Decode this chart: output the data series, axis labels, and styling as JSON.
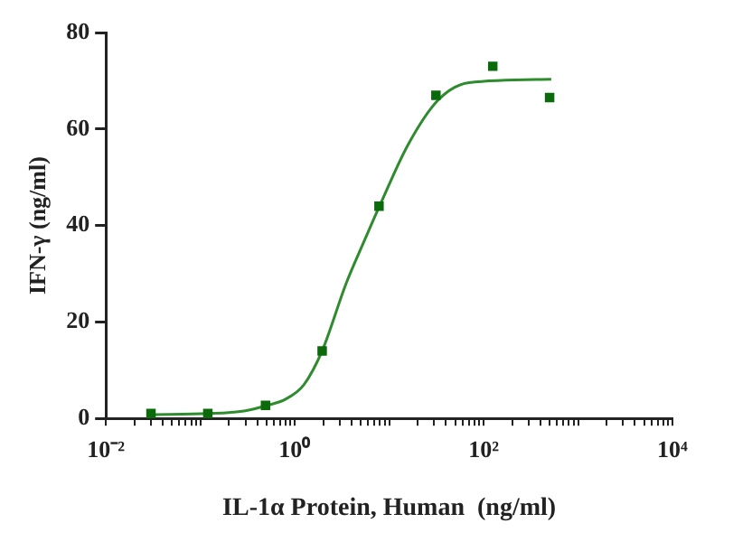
{
  "chart_data": {
    "type": "scatter",
    "xlabel": "IL-1α Protein, Human  (ng/ml)",
    "ylabel": "IFN-γ (ng/ml)",
    "log": "x",
    "xlim": [
      0.01,
      10000
    ],
    "xticks": [
      {
        "value": 0.01,
        "label": "10⁻²"
      },
      {
        "value": 0.02,
        "label": null
      },
      {
        "value": 0.03,
        "label": null
      },
      {
        "value": 0.04,
        "label": null
      },
      {
        "value": 0.05,
        "label": null
      },
      {
        "value": 0.06,
        "label": null
      },
      {
        "value": 0.07,
        "label": null
      },
      {
        "value": 0.08,
        "label": null
      },
      {
        "value": 0.09,
        "label": null
      },
      {
        "value": 0.1,
        "label": null
      },
      {
        "value": 0.2,
        "label": null
      },
      {
        "value": 0.3,
        "label": null
      },
      {
        "value": 0.4,
        "label": null
      },
      {
        "value": 0.5,
        "label": null
      },
      {
        "value": 0.6,
        "label": null
      },
      {
        "value": 0.7,
        "label": null
      },
      {
        "value": 0.8,
        "label": null
      },
      {
        "value": 0.9,
        "label": null
      },
      {
        "value": 1,
        "label": "10⁰"
      },
      {
        "value": 2,
        "label": null
      },
      {
        "value": 3,
        "label": null
      },
      {
        "value": 4,
        "label": null
      },
      {
        "value": 5,
        "label": null
      },
      {
        "value": 6,
        "label": null
      },
      {
        "value": 7,
        "label": null
      },
      {
        "value": 8,
        "label": null
      },
      {
        "value": 9,
        "label": null
      },
      {
        "value": 10,
        "label": null
      },
      {
        "value": 20,
        "label": null
      },
      {
        "value": 30,
        "label": null
      },
      {
        "value": 40,
        "label": null
      },
      {
        "value": 50,
        "label": null
      },
      {
        "value": 60,
        "label": null
      },
      {
        "value": 70,
        "label": null
      },
      {
        "value": 80,
        "label": null
      },
      {
        "value": 90,
        "label": null
      },
      {
        "value": 100,
        "label": "10²"
      },
      {
        "value": 200,
        "label": null
      },
      {
        "value": 300,
        "label": null
      },
      {
        "value": 400,
        "label": null
      },
      {
        "value": 500,
        "label": null
      },
      {
        "value": 600,
        "label": null
      },
      {
        "value": 700,
        "label": null
      },
      {
        "value": 800,
        "label": null
      },
      {
        "value": 900,
        "label": null
      },
      {
        "value": 1000,
        "label": null
      },
      {
        "value": 2000,
        "label": null
      },
      {
        "value": 3000,
        "label": null
      },
      {
        "value": 4000,
        "label": null
      },
      {
        "value": 5000,
        "label": null
      },
      {
        "value": 6000,
        "label": null
      },
      {
        "value": 7000,
        "label": null
      },
      {
        "value": 8000,
        "label": null
      },
      {
        "value": 9000,
        "label": null
      },
      {
        "value": 10000,
        "label": "10⁴"
      }
    ],
    "ylim": [
      0,
      80
    ],
    "yticks": [
      0,
      20,
      40,
      60,
      80
    ],
    "grid": false,
    "legend": false,
    "series": [
      {
        "marker": "square",
        "color": "#0b6b0b",
        "x": [
          0.03,
          0.12,
          0.49,
          1.95,
          7.8,
          31.25,
          125,
          500
        ],
        "values": [
          1,
          1,
          2.7,
          14,
          44,
          67,
          73,
          66.5
        ]
      },
      {
        "type": "line",
        "marker": "none",
        "line_style": "solid",
        "color": "#2e8b2e",
        "x": [
          0.03,
          0.12,
          0.3,
          0.51,
          0.8,
          1.25,
          1.95,
          3.5,
          5.5,
          7.9,
          15.7,
          33,
          70,
          520
        ],
        "values": [
          0.8,
          1,
          1.6,
          2.7,
          4,
          7,
          14,
          28,
          37,
          44,
          56.6,
          66,
          69.6,
          70.3
        ]
      }
    ]
  }
}
